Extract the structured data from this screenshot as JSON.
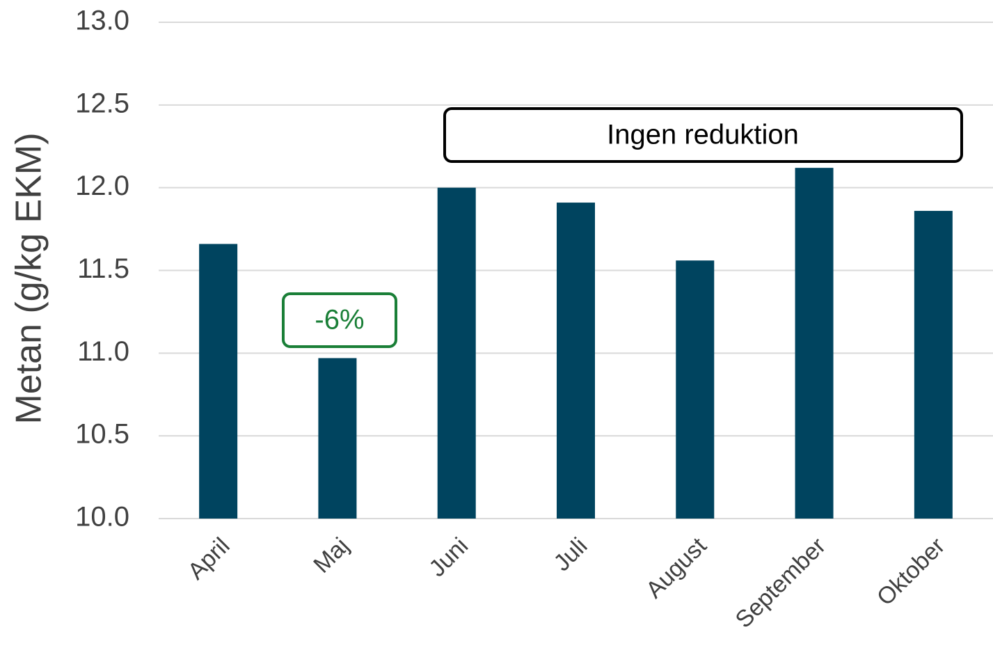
{
  "chart_data": {
    "type": "bar",
    "y_label": "Metan (g/kg EKM)",
    "categories": [
      "April",
      "Maj",
      "Juni",
      "Juli",
      "August",
      "September",
      "Oktober"
    ],
    "values": [
      11.66,
      10.97,
      12.0,
      11.91,
      11.56,
      12.12,
      11.86
    ],
    "color": "#00445f",
    "ylim": [
      10,
      13
    ],
    "yticks": [
      {
        "value": 10,
        "label": "10.0"
      },
      {
        "value": 10.5,
        "label": "10.5"
      },
      {
        "value": 11,
        "label": "11.0"
      },
      {
        "value": 11.5,
        "label": "11.5"
      },
      {
        "value": 12,
        "label": "12.0"
      },
      {
        "value": 12.5,
        "label": "12.5"
      },
      {
        "value": 13,
        "label": "13.0"
      }
    ],
    "grid": true,
    "annotations": [
      "-6%",
      "Ingen reduktion"
    ]
  }
}
